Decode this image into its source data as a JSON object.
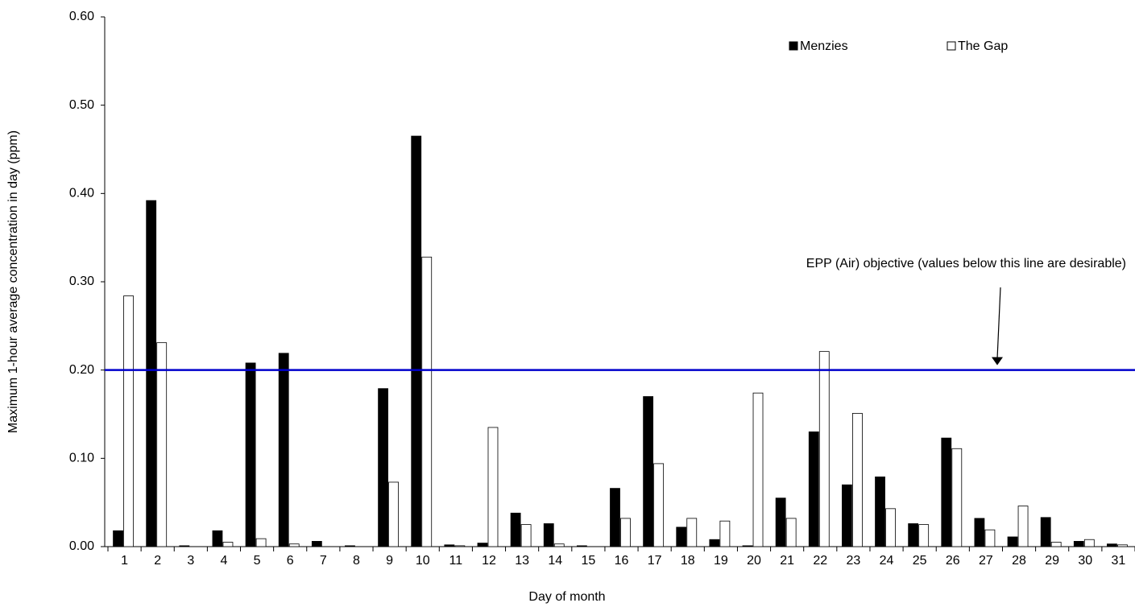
{
  "chart_data": {
    "type": "bar",
    "x_label": "Day of month",
    "y_label": "Maximum 1-hour average concentration in day (ppm)",
    "categories": [
      "1",
      "2",
      "3",
      "4",
      "5",
      "6",
      "7",
      "8",
      "9",
      "10",
      "11",
      "12",
      "13",
      "14",
      "15",
      "16",
      "17",
      "18",
      "19",
      "20",
      "21",
      "22",
      "23",
      "24",
      "25",
      "26",
      "27",
      "28",
      "29",
      "30",
      "31"
    ],
    "series": [
      {
        "name": "Menzies",
        "color": "#000000",
        "values": [
          0.018,
          0.392,
          0.001,
          0.018,
          0.208,
          0.219,
          0.006,
          0.001,
          0.179,
          0.465,
          0.002,
          0.004,
          0.038,
          0.026,
          0.001,
          0.066,
          0.17,
          0.022,
          0.008,
          0.001,
          0.055,
          0.13,
          0.07,
          0.079,
          0.026,
          0.123,
          0.032,
          0.011,
          0.033,
          0.006,
          0.003
        ]
      },
      {
        "name": "The Gap",
        "color": "#ffffff",
        "values": [
          0.284,
          0.231,
          0,
          0.005,
          0.009,
          0.003,
          0,
          0,
          0.073,
          0.328,
          0.001,
          0.135,
          0.025,
          0.003,
          0,
          0.032,
          0.094,
          0.032,
          0.029,
          0.174,
          0.032,
          0.221,
          0.151,
          0.043,
          0.025,
          0.111,
          0.019,
          0.046,
          0.005,
          0.008,
          0.002
        ]
      }
    ],
    "ylim": [
      0,
      0.6
    ],
    "yticks": [
      {
        "value": 0,
        "label": "0.00"
      },
      {
        "value": 0.1,
        "label": "0.10"
      },
      {
        "value": 0.2,
        "label": "0.20"
      },
      {
        "value": 0.3,
        "label": "0.30"
      },
      {
        "value": 0.4,
        "label": "0.40"
      },
      {
        "value": 0.5,
        "label": "0.50"
      },
      {
        "value": 0.6,
        "label": "0.60"
      }
    ],
    "reference_line": {
      "value": 0.2,
      "color": "#0000cc",
      "label": "EPP (Air) objective (values below this line are desirable)"
    },
    "legend": "top-right",
    "grid": false
  }
}
